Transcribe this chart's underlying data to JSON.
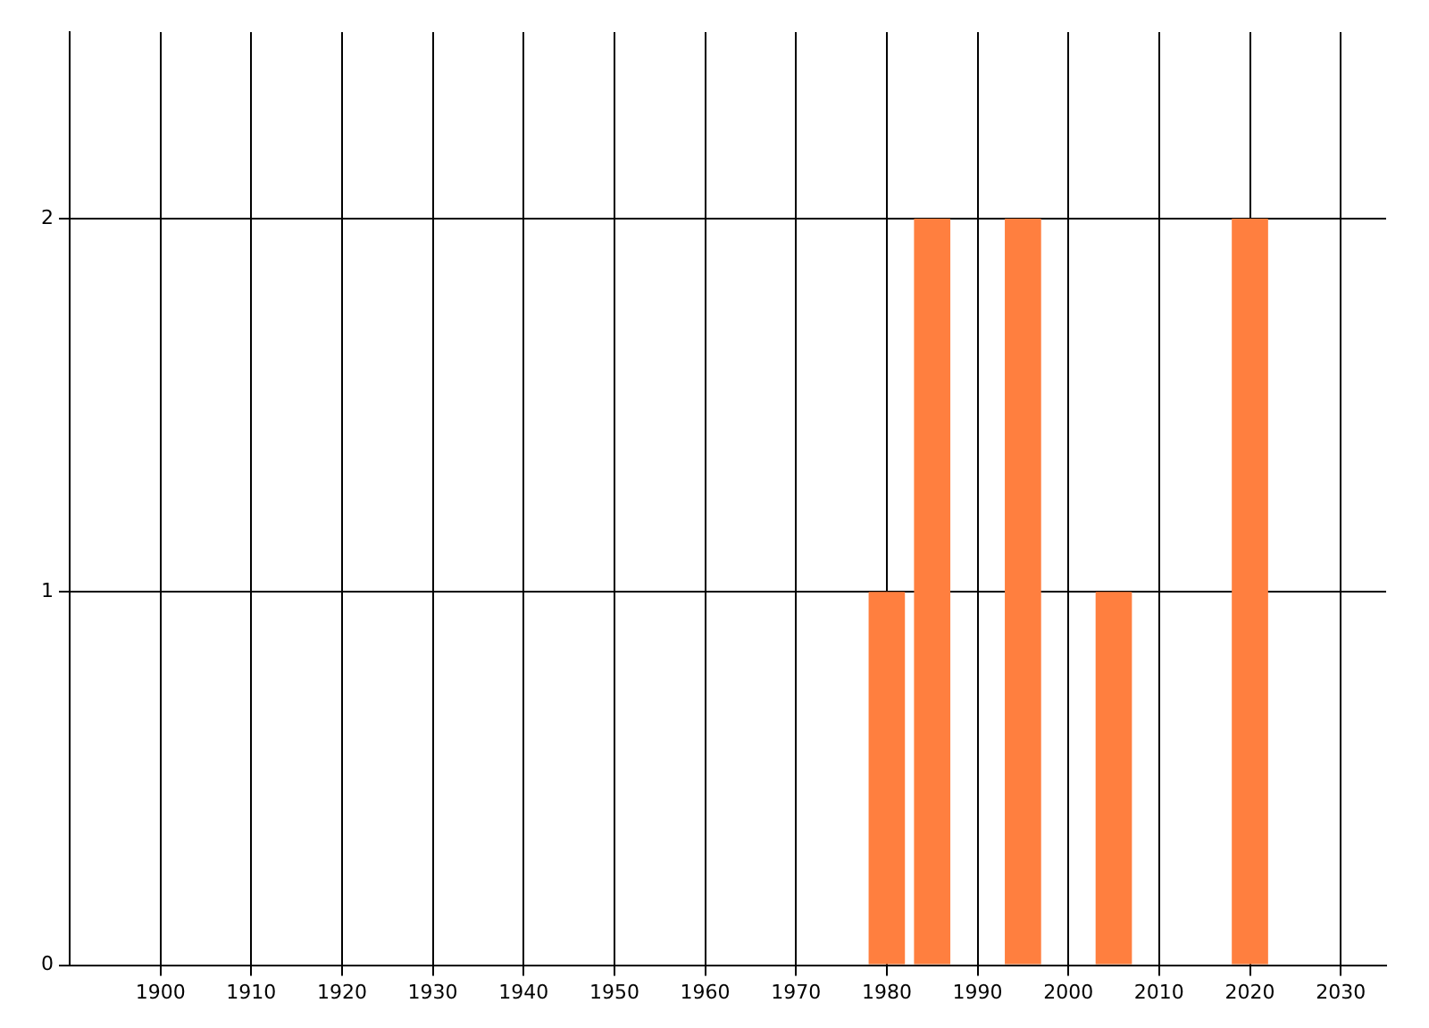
{
  "chart_data": {
    "type": "bar",
    "x": [
      1980,
      1985,
      1995,
      2005,
      2020
    ],
    "values": [
      1,
      2,
      2,
      1,
      2
    ],
    "color": "#ff7f3f",
    "xlim": [
      1890,
      2035
    ],
    "xticks": [
      1900,
      1910,
      1920,
      1930,
      1940,
      1950,
      1960,
      1970,
      1980,
      1990,
      2000,
      2010,
      2020,
      2030
    ],
    "ylim": [
      0,
      2.5
    ],
    "yticks": [
      0,
      1,
      2
    ],
    "grid": true,
    "legend": false
  }
}
